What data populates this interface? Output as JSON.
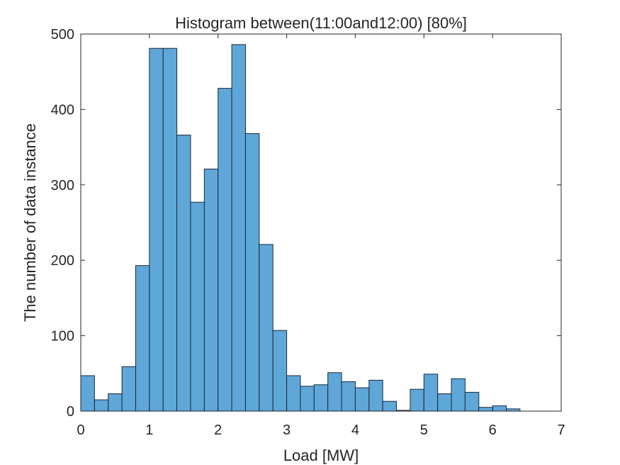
{
  "chart_data": {
    "type": "bar",
    "title": "Histogram between(11:00and12:00) [80%]",
    "xlabel": "Load [MW]",
    "ylabel": "The number of data instance",
    "xlim": [
      0,
      7
    ],
    "ylim": [
      0,
      500
    ],
    "xticks": [
      0,
      1,
      2,
      3,
      4,
      5,
      6,
      7
    ],
    "yticks": [
      0,
      100,
      200,
      300,
      400,
      500
    ],
    "bin_width": 0.2,
    "bin_start": 0,
    "values": [
      47,
      15,
      23,
      59,
      193,
      481,
      481,
      366,
      277,
      321,
      428,
      486,
      368,
      221,
      107,
      47,
      33,
      35,
      51,
      39,
      31,
      41,
      13,
      1,
      29,
      49,
      23,
      43,
      25,
      5,
      7,
      3
    ],
    "bar_color": "#5fa6d9",
    "edge_color": "#1a2a3a",
    "grid": false
  }
}
